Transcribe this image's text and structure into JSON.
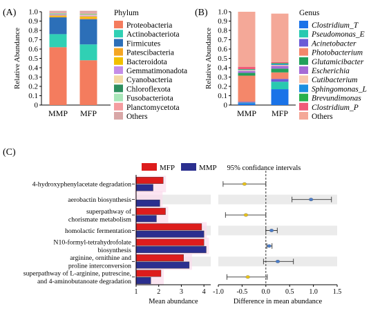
{
  "panel_labels": {
    "A": "(A)",
    "B": "(B)",
    "C": "(C)"
  },
  "chart_data": [
    {
      "type": "bar",
      "stacked": true,
      "panel": "A",
      "categories": [
        "MMP",
        "MFP"
      ],
      "ylabel": "Relative Abundance",
      "ylim": [
        0,
        1.0
      ],
      "yticks": [
        "0",
        "0.1",
        "0.2",
        "0.3",
        "0.4",
        "0.5",
        "0.6",
        "0.7",
        "0.8",
        "0.9",
        "1.0"
      ],
      "legend_title": "Phylum",
      "legend_italic": false,
      "series": [
        {
          "name": "Proteobacteria",
          "color": "#f47c5e",
          "values": [
            0.62,
            0.48
          ]
        },
        {
          "name": "Actinobacteriota",
          "color": "#30d0b4",
          "values": [
            0.14,
            0.17
          ]
        },
        {
          "name": "Firmicutes",
          "color": "#2c6fb8",
          "values": [
            0.18,
            0.27
          ]
        },
        {
          "name": "Patescibacteria",
          "color": "#f5a623",
          "values": [
            0.01,
            0.015
          ]
        },
        {
          "name": "Bacteroidota",
          "color": "#f1c000",
          "values": [
            0.01,
            0.015
          ]
        },
        {
          "name": "Gemmatimonadota",
          "color": "#c48de8",
          "values": [
            0.01,
            0.01
          ]
        },
        {
          "name": "Cyanobacteria",
          "color": "#f3d9a4",
          "values": [
            0.005,
            0.01
          ]
        },
        {
          "name": "Chloroflexota",
          "color": "#2e8f5e",
          "values": [
            0.005,
            0.005
          ]
        },
        {
          "name": "Fusobacteriota",
          "color": "#a8e6b8",
          "values": [
            0.005,
            0.005
          ]
        },
        {
          "name": "Planctomycetota",
          "color": "#f59da0",
          "values": [
            0.01,
            0.01
          ]
        },
        {
          "name": "Others",
          "color": "#d8a7a7",
          "values": [
            0.015,
            0.02
          ]
        }
      ]
    },
    {
      "type": "bar",
      "stacked": true,
      "panel": "B",
      "categories": [
        "MMP",
        "MFP"
      ],
      "ylabel": "Relative Abundance",
      "ylim": [
        0,
        1.0
      ],
      "yticks": [
        "0",
        "0.1",
        "0.2",
        "0.3",
        "0.4",
        "0.5",
        "0.6",
        "0.7",
        "0.8",
        "0.9",
        "1.0"
      ],
      "legend_title": "Genus",
      "legend_italic": true,
      "series": [
        {
          "name": "Clostridium_T",
          "color": "#1a73e8",
          "values": [
            0.02,
            0.17
          ]
        },
        {
          "name": "Pseudomonas_E",
          "color": "#28c9b0",
          "values": [
            0.005,
            0.08
          ]
        },
        {
          "name": "Acinetobacter",
          "color": "#6a5bd6",
          "values": [
            0.01,
            0.03
          ]
        },
        {
          "name": "Photobacterium",
          "color": "#f4876a",
          "values": [
            0.28,
            0.07
          ]
        },
        {
          "name": "Glutamicibacter",
          "color": "#21a05a",
          "values": [
            0.03,
            0.04
          ]
        },
        {
          "name": "Escherichia",
          "color": "#a56cd6",
          "values": [
            0.02,
            0.03
          ]
        },
        {
          "name": "Cutibacterium",
          "color": "#f7c7ad",
          "values": [
            0.01,
            0.01
          ]
        },
        {
          "name": "Sphingomonas_L",
          "color": "#1b8fe0",
          "values": [
            0.005,
            0.01
          ]
        },
        {
          "name": "Brevundimonas",
          "color": "#27b04c",
          "values": [
            0.005,
            0.01
          ]
        },
        {
          "name": "Clostridium_P",
          "color": "#f05a78",
          "values": [
            0.025,
            0.01
          ]
        },
        {
          "name": "Others",
          "color": "#f4a898",
          "values": [
            0.59,
            0.52
          ]
        }
      ]
    },
    {
      "type": "bar",
      "orientation": "horizontal",
      "panel": "C",
      "categories": [
        "4-hydroxyphenylacetate degradation",
        "aerobactin biosynthesis",
        "superpathway of chorismate metabolism",
        "homolactic fermentation",
        "N10-formyl-tetrahydrofolate biosynthesis",
        "arginine, ornithine and proline interconversion",
        "superpathway of L-arginine, putrescine, and 4-aminobutanoate degradation"
      ],
      "category_lines": [
        [
          "4-hydroxyphenylacetate degradation"
        ],
        [
          "aerobactin biosynthesis"
        ],
        [
          "superpathway of",
          "chorismate metabolism"
        ],
        [
          "homolactic fermentation"
        ],
        [
          "N10-formyl-tetrahydrofolate",
          "biosynthesis"
        ],
        [
          "arginine, ornithine and",
          "proline interconversion"
        ],
        [
          "superpathway of L-arginine, putrescine,",
          "and 4-aminobutanoate degradation"
        ]
      ],
      "series": [
        {
          "name": "MFP",
          "color": "#dd1c1c",
          "values": [
            2.2,
            1.0,
            2.3,
            3.9,
            4.0,
            3.1,
            2.1
          ]
        },
        {
          "name": "MMP",
          "color": "#2b2f8f",
          "values": [
            1.75,
            2.05,
            1.9,
            4.0,
            4.1,
            3.35,
            1.65
          ]
        }
      ],
      "xlabel": "Mean abundance",
      "xlim": [
        1,
        4.3
      ],
      "xticks": [
        "1",
        "2",
        "3",
        "4"
      ]
    },
    {
      "type": "scatter",
      "panel": "C",
      "subtype": "errorbar",
      "title": "95% confidance intervals",
      "xlabel": "Difference in mean abundance",
      "xlim": [
        -1.0,
        1.5
      ],
      "xticks": [
        "-1.0",
        "-0.5",
        "0.0",
        "0.5",
        "1.0",
        "1.5"
      ],
      "points": [
        {
          "mean": -0.45,
          "low": -0.9,
          "high": 0.0,
          "color": "#e8c21a"
        },
        {
          "mean": 0.95,
          "low": 0.55,
          "high": 1.38,
          "color": "#4a7cc9"
        },
        {
          "mean": -0.42,
          "low": -0.85,
          "high": 0.0,
          "color": "#e8c21a"
        },
        {
          "mean": 0.12,
          "low": 0.0,
          "high": 0.24,
          "color": "#4a7cc9"
        },
        {
          "mean": 0.07,
          "low": 0.02,
          "high": 0.13,
          "color": "#4a7cc9"
        },
        {
          "mean": 0.25,
          "low": -0.05,
          "high": 0.58,
          "color": "#4a7cc9"
        },
        {
          "mean": -0.38,
          "low": -0.82,
          "high": 0.03,
          "color": "#e8c21a"
        }
      ]
    }
  ]
}
